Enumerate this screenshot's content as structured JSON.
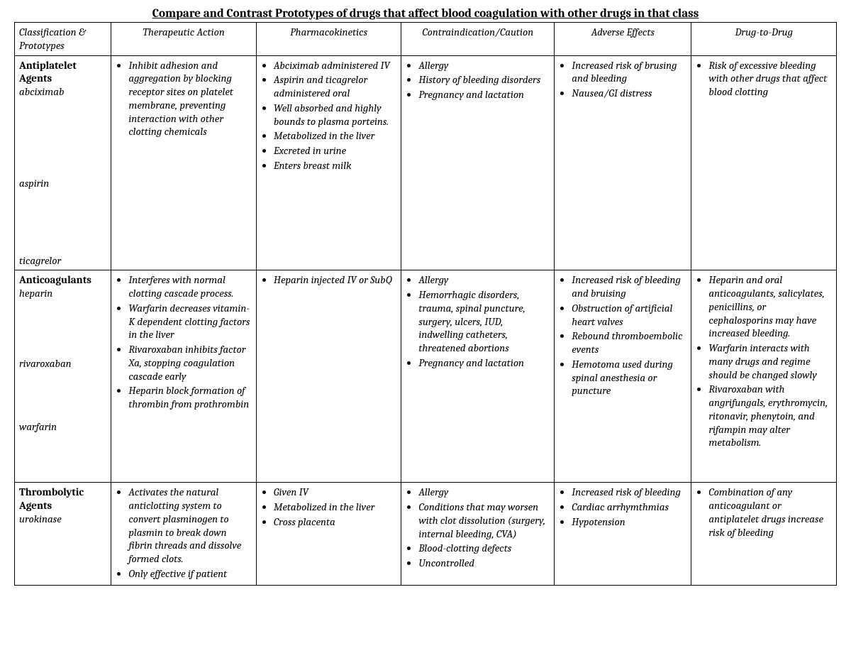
{
  "title": "Compare and Contrast Prototypes of drugs that affect blood coagulation with other drugs in that class",
  "headers": {
    "c0": "Classification & Prototypes",
    "c1": "Therapeutic Action",
    "c2": "Pharmacokinetics",
    "c3": "Contraindication/Caution",
    "c4": "Adverse Effects",
    "c5": "Drug-to-Drug"
  },
  "rows": [
    {
      "group": "Antiplatelet Agents",
      "prototypes": [
        "abciximab",
        "aspirin",
        "ticagrelor"
      ],
      "proto_spacing": [
        0,
        110,
        90
      ],
      "therapeutic": [
        "Inhibit adhesion and aggregation by blocking receptor sites on platelet membrane, preventing interaction with other clotting chemicals"
      ],
      "pk": [
        "Abciximab administered IV",
        "Aspirin and ticagrelor administered oral",
        "Well absorbed and highly bounds to plasma porteins.",
        "Metabolized in the liver",
        "Excreted in urine",
        "Enters breast milk"
      ],
      "contra": [
        "Allergy",
        "History of bleeding disorders",
        "Pregnancy and lactation"
      ],
      "adverse": [
        "Increased risk of brusing and bleeding",
        "Nausea/GI distress"
      ],
      "d2d": [
        "Risk of excessive bleeding with other drugs that affect blood clotting"
      ]
    },
    {
      "group": "Anticoagulants",
      "prototypes": [
        "heparin",
        "rivaroxaban",
        "warfarin"
      ],
      "proto_spacing": [
        0,
        80,
        70
      ],
      "therapeutic": [
        "Interferes with normal clotting cascade process.",
        "Warfarin decreases vitamin-K dependent clotting factors in the liver",
        "Rivaroxaban inhibits factor Xa, stopping coagulation cascade early",
        "Heparin block formation of thrombin from prothrombin"
      ],
      "pk": [
        "Heparin  injected IV or SubQ"
      ],
      "contra": [
        "Allergy",
        "Hemorrhagic disorders, trauma, spinal puncture, surgery, ulcers, IUD, indwelling catheters, threatened abortions",
        "Pregnancy and lactation"
      ],
      "adverse": [
        "Increased risk of bleeding and bruising",
        "Obstruction of artificial heart valves",
        "Rebound thromboembolic events",
        "Hemotoma used during spinal anesthesia or puncture"
      ],
      "d2d": [
        "Heparin and oral anticoagulants, salicylates, penicillins, or cephalosporins may have increased bleeding.",
        "Warfarin interacts with many drugs and regime should be changed slowly",
        "Rivaroxaban with angrifungals, erythromycin, ritonavir, phenytoin, and rifampin may alter metabolism."
      ]
    },
    {
      "group": "Thrombolytic Agents",
      "prototypes": [
        "urokinase"
      ],
      "proto_spacing": [
        0
      ],
      "therapeutic": [
        "Activates the natural anticlotting system to convert plasminogen to plasmin to break down fibrin threads and dissolve formed clots.",
        "Only effective if patient"
      ],
      "pk": [
        "Given IV",
        "Metabolized in the liver",
        "Cross placenta"
      ],
      "contra": [
        "Allergy",
        "Conditions that may worsen with clot dissolution (surgery, internal bleeding, CVA)",
        "Blood-clotting defects",
        "Uncontrolled"
      ],
      "adverse": [
        "Increased risk of bleeding",
        "Cardiac arrhymthmias",
        "Hypotension"
      ],
      "d2d": [
        "Combination of any anticoagulant or antiplatelet drugs increase risk of bleeding"
      ]
    }
  ]
}
